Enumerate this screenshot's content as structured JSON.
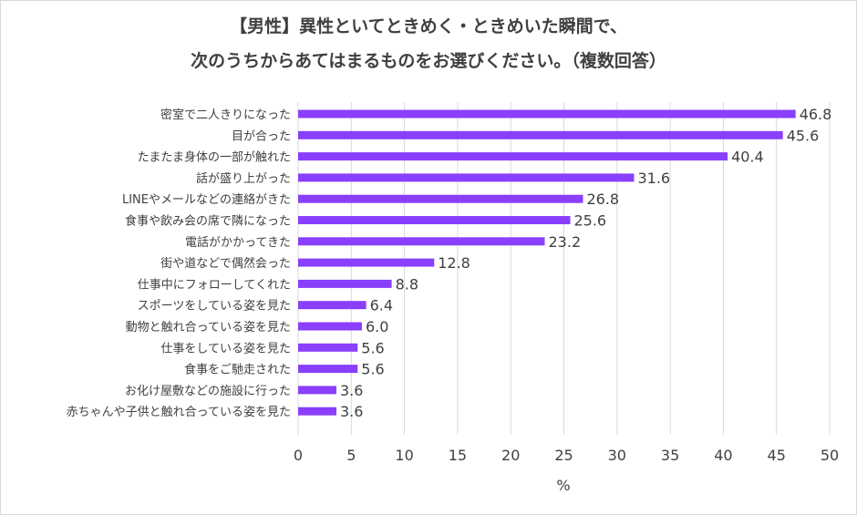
{
  "chart_data": {
    "type": "bar",
    "orientation": "horizontal",
    "title": [
      "【男性】異性といてときめく・ときめいた瞬間で、",
      "次のうちからあてはまるものをお選びください。（複数回答）"
    ],
    "categories": [
      "密室で二人きりになった",
      "目が合った",
      "たまたま身体の一部が触れた",
      "話が盛り上がった",
      "LINEやメールなどの連絡がきた",
      "食事や飲み会の席で隣になった",
      "電話がかかってきた",
      "街や道などで偶然会った",
      "仕事中にフォローしてくれた",
      "スポーツをしている姿を見た",
      "動物と触れ合っている姿を見た",
      "仕事をしている姿を見た",
      "食事をご馳走された",
      "お化け屋敷などの施設に行った",
      "赤ちゃんや子供と触れ合っている姿を見た"
    ],
    "values": [
      46.8,
      45.6,
      40.4,
      31.6,
      26.8,
      25.6,
      23.2,
      12.8,
      8.8,
      6.4,
      6.0,
      5.6,
      5.6,
      3.6,
      3.6
    ],
    "value_labels": [
      "46.8",
      "45.6",
      "40.4",
      "31.6",
      "26.8",
      "25.6",
      "23.2",
      "12.8",
      "8.8",
      "6.4",
      "6.0",
      "5.6",
      "5.6",
      "3.6",
      "3.6"
    ],
    "xlabel": "%",
    "xlim": [
      0,
      50
    ],
    "xticks": [
      0,
      5,
      10,
      15,
      20,
      25,
      30,
      35,
      40,
      45,
      50
    ],
    "grid": true,
    "bar_color": "#8a3ffc",
    "grid_color": "#d9d9d9"
  }
}
